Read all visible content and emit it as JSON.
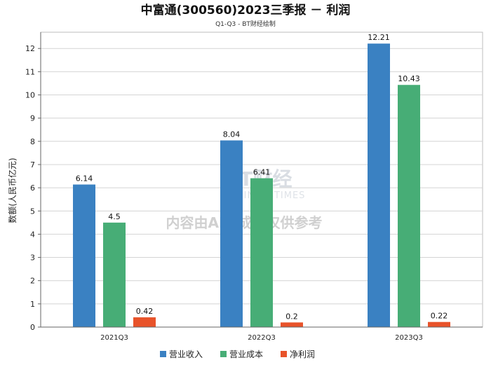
{
  "chart_data": {
    "type": "bar",
    "title": "中富通(300560)2023三季报 － 利润",
    "subtitle": "Q1-Q3 - BT财经绘制",
    "ylabel": "数额(人民币亿元)",
    "xlabel": "",
    "ylim": [
      0,
      12.7
    ],
    "yticks": [
      0,
      1,
      2,
      3,
      4,
      5,
      6,
      7,
      8,
      9,
      10,
      11,
      12
    ],
    "grid": true,
    "legend_position": "bottom",
    "categories": [
      "2021Q3",
      "2022Q3",
      "2023Q3"
    ],
    "series": [
      {
        "name": "营业收入",
        "color": "#3a81c2",
        "values": [
          6.14,
          8.04,
          12.21
        ],
        "labels": [
          "6.14",
          "8.04",
          "12.21"
        ]
      },
      {
        "name": "营业成本",
        "color": "#47ad76",
        "values": [
          4.5,
          6.41,
          10.43
        ],
        "labels": [
          "4.5",
          "6.41",
          "10.43"
        ]
      },
      {
        "name": "净利润",
        "color": "#e8532a",
        "values": [
          0.42,
          0.2,
          0.22
        ],
        "labels": [
          "0.42",
          "0.2",
          "0.22"
        ]
      }
    ],
    "watermark": {
      "brand": "BT财经",
      "brand_en": "BUSINESSTIMES",
      "notice": "内容由AI生成，仅供参考"
    }
  }
}
